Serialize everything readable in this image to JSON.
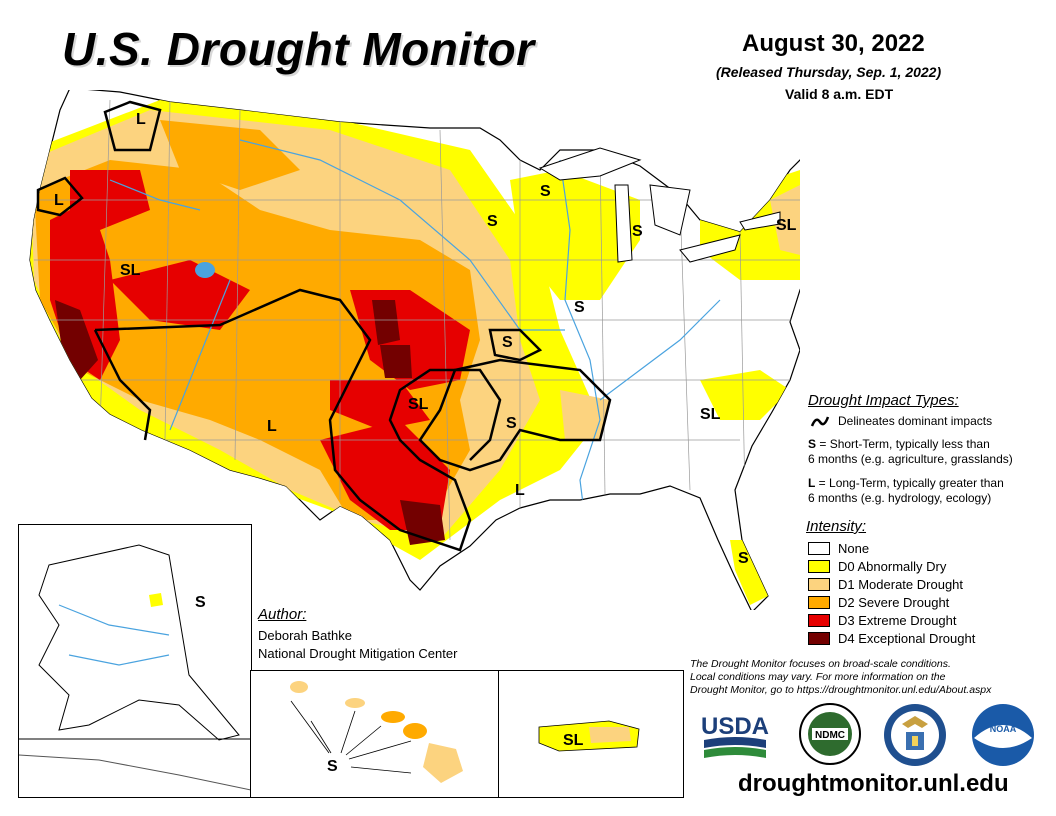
{
  "header": {
    "title": "U.S. Drought Monitor",
    "date": "August 30, 2022",
    "released": "(Released Thursday, Sep. 1, 2022)",
    "valid": "Valid 8 a.m. EDT"
  },
  "map_labels": [
    "L",
    "L",
    "SL",
    "S",
    "S",
    "S",
    "S",
    "S",
    "SL",
    "S",
    "SL",
    "S",
    "L",
    "SL",
    "L",
    "S",
    "S",
    "S",
    "SL"
  ],
  "impact": {
    "title": "Drought Impact Types:",
    "delineates": "Delineates dominant impacts",
    "short_key": "S",
    "short_line1": " = Short-Term, typically less than",
    "short_line2": "6 months (e.g. agriculture, grasslands)",
    "long_key": "L",
    "long_line1": " = Long-Term, typically greater than",
    "long_line2": "6 months (e.g. hydrology, ecology)"
  },
  "intensity": {
    "title": "Intensity:",
    "levels": [
      {
        "label": "None",
        "color": "#ffffff"
      },
      {
        "label": "D0 Abnormally Dry",
        "color": "#ffff00"
      },
      {
        "label": "D1 Moderate Drought",
        "color": "#fcd37f"
      },
      {
        "label": "D2 Severe Drought",
        "color": "#ffaa00"
      },
      {
        "label": "D3 Extreme Drought",
        "color": "#e60000"
      },
      {
        "label": "D4 Exceptional Drought",
        "color": "#730000"
      }
    ]
  },
  "author": {
    "title": "Author:",
    "name": "Deborah Bathke",
    "org": "National Drought Mitigation Center"
  },
  "disclaimer": {
    "line1": "The Drought Monitor focuses on broad-scale conditions.",
    "line2": "Local conditions may vary. For more information on the",
    "line3": "Drought Monitor, go to https://droughtmonitor.unl.edu/About.aspx"
  },
  "logos": {
    "usda": "USDA",
    "ndmc": "NDMC",
    "noaa": "NOAA",
    "ndmc_ring": "NATIONAL DROUGHT MITIGATION CENTER"
  },
  "website": "droughtmonitor.unl.edu",
  "colors": {
    "water": "#4aa3df",
    "outline": "#000000",
    "state_line": "#9a9a9a"
  }
}
